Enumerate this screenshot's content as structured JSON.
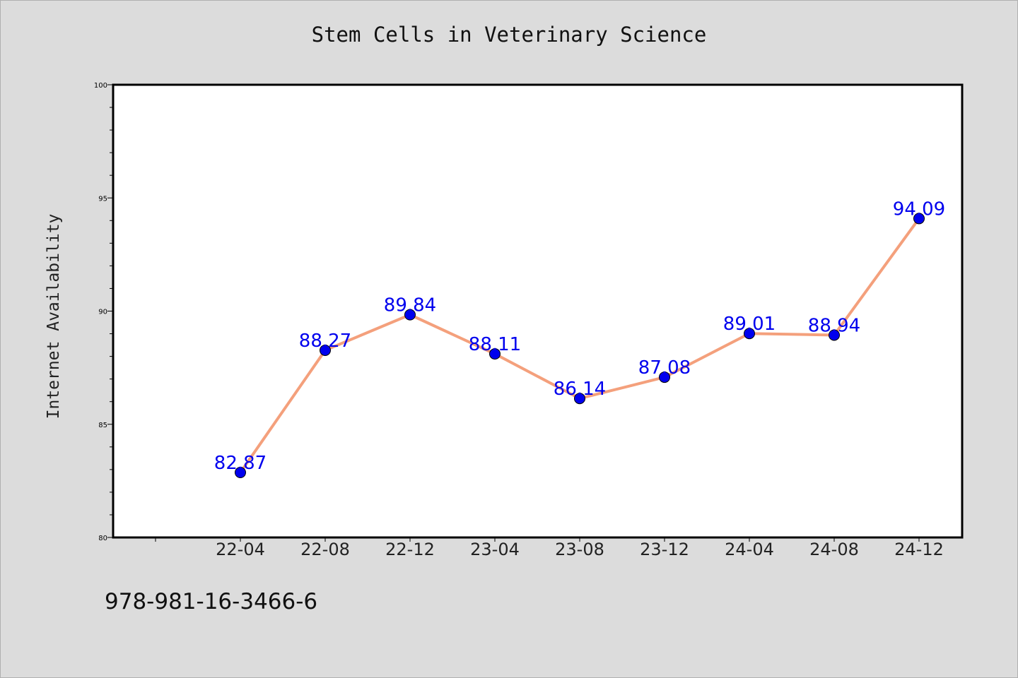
{
  "chart_data": {
    "type": "line",
    "title": "Stem Cells in Veterinary Science",
    "ylabel": "Internet Availability",
    "xlabel": "",
    "categories": [
      "22-04",
      "22-08",
      "22-12",
      "23-04",
      "23-08",
      "23-12",
      "24-04",
      "24-08",
      "24-12"
    ],
    "values": [
      82.87,
      88.27,
      89.84,
      88.11,
      86.14,
      87.08,
      89.01,
      88.94,
      94.09
    ],
    "data_labels": [
      "82.87",
      "88.27",
      "89.84",
      "88.11",
      "86.14",
      "87.08",
      "89.01",
      "88.94",
      "94.09"
    ],
    "ylim": [
      80,
      100
    ],
    "yticks": [
      80,
      85,
      90,
      95,
      100
    ],
    "ytick_labels": [
      "80",
      "85",
      "90",
      "95",
      "100"
    ],
    "grid": false,
    "legend": "none",
    "colors": {
      "line": "#f4a07c",
      "marker": "#0000ee",
      "data_label": "#0000ee",
      "plot_background": "#ffffff",
      "page_background": "#dcdcdc"
    }
  },
  "footer": {
    "text": "978-981-16-3466-6"
  }
}
